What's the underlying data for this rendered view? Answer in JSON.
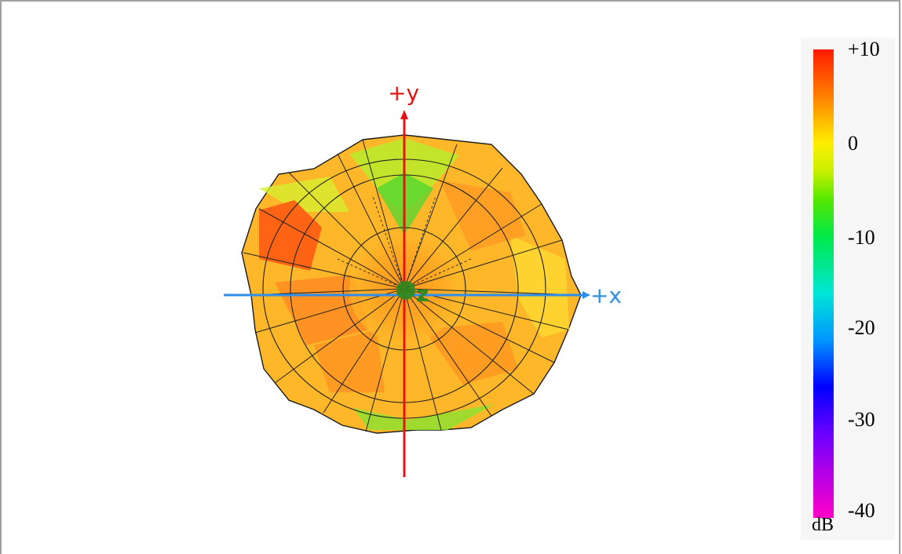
{
  "axes": {
    "x_label": "+x",
    "y_label": "+y",
    "z_label": "z",
    "x_color": "#2f8fe8",
    "y_color": "#e81414",
    "z_color": "#2e8b1e"
  },
  "colorbar": {
    "unit": "dB",
    "ticks": [
      "+10",
      "0",
      "-10",
      "-20",
      "-30",
      "-40"
    ],
    "range": [
      -40,
      10
    ],
    "colors": [
      "#ff1a00",
      "#ff8000",
      "#ffee00",
      "#55e800",
      "#00e6d6",
      "#0096ff",
      "#0000ff",
      "#b000e8",
      "#ff00c8"
    ]
  },
  "chart_data": {
    "type": "heatmap",
    "title": "",
    "view": "top view along +z",
    "unit": "dB",
    "colorbar_range": [
      -40,
      10
    ],
    "colorbar_ticks": [
      10,
      0,
      -10,
      -20,
      -30,
      -40
    ],
    "pattern_gain_db_range": [
      -6,
      8
    ],
    "peak_region": "upper-left",
    "peak_gain_db": 8
  }
}
